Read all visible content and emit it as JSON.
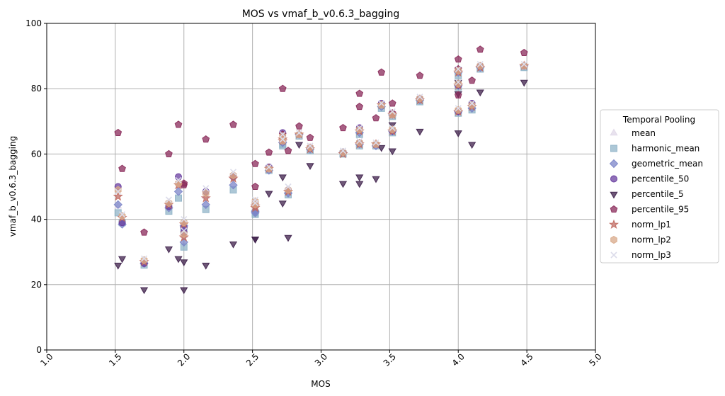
{
  "chart_data": {
    "type": "scatter",
    "title": "MOS vs vmaf_b_v0.6.3_bagging",
    "xlabel": "MOS",
    "ylabel": "vmaf_b_v0.6.3_bagging",
    "xlim": [
      1.0,
      5.0
    ],
    "ylim": [
      0,
      100
    ],
    "xticks": [
      1.0,
      1.5,
      2.0,
      2.5,
      3.0,
      3.5,
      4.0,
      4.5,
      5.0
    ],
    "xtick_labels": [
      "1.0",
      "1.5",
      "2.0",
      "2.5",
      "3.0",
      "3.5",
      "4.0",
      "4.5",
      "5.0"
    ],
    "yticks": [
      0,
      20,
      40,
      60,
      80,
      100
    ],
    "ytick_labels": [
      "0",
      "20",
      "40",
      "60",
      "80",
      "100"
    ],
    "grid": true,
    "legend_title": "Temporal Pooling",
    "legend_position": "outside-right",
    "x": [
      1.52,
      1.55,
      1.71,
      1.89,
      1.96,
      2.0,
      2.0,
      2.16,
      2.36,
      2.52,
      2.52,
      2.62,
      2.72,
      2.72,
      2.76,
      2.84,
      2.92,
      3.16,
      3.28,
      3.28,
      3.4,
      3.44,
      3.52,
      3.52,
      3.72,
      4.0,
      4.0,
      4.0,
      4.1,
      4.16,
      4.48
    ],
    "series": [
      {
        "name": "mean",
        "marker": "triangle",
        "color": "#e0d8e8",
        "values": [
          44,
          40,
          27,
          45,
          50,
          39,
          35,
          47,
          53,
          44,
          43,
          55,
          65,
          64,
          49,
          66,
          62,
          60,
          67,
          63,
          63,
          75,
          72,
          67,
          77,
          85,
          81,
          73,
          74,
          86,
          87
        ]
      },
      {
        "name": "harmonic_mean",
        "marker": "square",
        "color": "#90b4c8",
        "values": [
          42,
          39,
          26,
          42.5,
          46.5,
          37,
          31.5,
          43,
          49,
          42,
          41.5,
          55,
          62.5,
          63,
          47.5,
          65.5,
          61,
          60,
          66,
          62.5,
          62.5,
          74,
          71.5,
          66.5,
          76,
          84,
          80.5,
          72.5,
          73.5,
          86,
          86.5
        ]
      },
      {
        "name": "geometric_mean",
        "marker": "diamond",
        "color": "#7b84c8",
        "values": [
          44.5,
          38.5,
          26.5,
          43.5,
          48.5,
          38,
          33,
          44.5,
          50.5,
          42.5,
          42,
          55,
          63.5,
          63.5,
          48,
          66,
          61.5,
          60.5,
          66.5,
          63,
          62.5,
          74.5,
          72,
          67,
          76.5,
          85,
          81,
          73,
          74,
          86.5,
          87
        ]
      },
      {
        "name": "percentile_50",
        "marker": "circle",
        "color": "#6a3fa0",
        "values": [
          50,
          39,
          26.5,
          44,
          53,
          37.5,
          36,
          48.5,
          53,
          44.5,
          45,
          56,
          66.5,
          64,
          49,
          66,
          62,
          60.5,
          68,
          63.5,
          63,
          75.5,
          72,
          67,
          77,
          85.5,
          81,
          73,
          75.5,
          87,
          87
        ]
      },
      {
        "name": "percentile_5",
        "marker": "triangle-down",
        "color": "#3d1f4a",
        "values": [
          26,
          28,
          18.5,
          31,
          28,
          27,
          18.5,
          26,
          32.5,
          34,
          34,
          48,
          45,
          53,
          34.5,
          63,
          56.5,
          51,
          53,
          51,
          52.5,
          62,
          61,
          69,
          67,
          82,
          78.5,
          66.5,
          63,
          79,
          82
        ]
      },
      {
        "name": "percentile_95",
        "marker": "pentagon",
        "color": "#8a2a5a",
        "values": [
          66.5,
          55.5,
          36,
          60,
          69,
          51,
          50.5,
          64.5,
          69,
          57,
          50,
          60.5,
          80,
          66,
          61,
          68.5,
          65,
          68,
          78.5,
          74.5,
          71,
          85,
          75.5,
          72.5,
          84,
          89,
          86,
          78,
          82.5,
          92,
          91
        ]
      },
      {
        "name": "norm_lp1",
        "marker": "star",
        "color": "#c06a62",
        "values": [
          47,
          40.5,
          27,
          44.5,
          50.5,
          38.5,
          34.5,
          46.5,
          52.5,
          44,
          43.5,
          55.5,
          64.5,
          64,
          48.5,
          66,
          61.5,
          60,
          67,
          63,
          63,
          75,
          72,
          67,
          76.5,
          85,
          81,
          73,
          74.5,
          86.5,
          87
        ]
      },
      {
        "name": "norm_lp2",
        "marker": "hexagon",
        "color": "#d8a888",
        "values": [
          49,
          41,
          27.5,
          45,
          51,
          39,
          35.5,
          48,
          53.5,
          45.5,
          44.5,
          55.5,
          65.5,
          64,
          49,
          66,
          62,
          60.5,
          67.5,
          63.5,
          63,
          75,
          72,
          67.5,
          77,
          85.5,
          81.5,
          73.5,
          75,
          87,
          87
        ]
      },
      {
        "name": "norm_lp3",
        "marker": "x",
        "color": "#dcdcea",
        "values": [
          48.5,
          41.5,
          28,
          46,
          52,
          40,
          36.5,
          49.5,
          54.5,
          46,
          45,
          56,
          66,
          64.5,
          50,
          66.5,
          62.5,
          61,
          68,
          64,
          63.5,
          75.5,
          73,
          68,
          77.5,
          86,
          82,
          74,
          75.5,
          87.5,
          87.5
        ]
      }
    ]
  }
}
